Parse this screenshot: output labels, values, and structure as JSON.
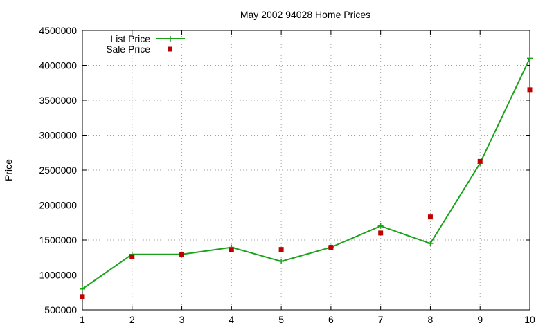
{
  "chart_data": {
    "type": "line",
    "title": "May 2002 94028 Home Prices",
    "xlabel": "",
    "ylabel": "Price",
    "x": [
      1,
      2,
      3,
      4,
      5,
      6,
      7,
      8,
      9,
      10
    ],
    "xlim": [
      1,
      10
    ],
    "ylim": [
      500000,
      4500000
    ],
    "yticks": [
      500000,
      1000000,
      1500000,
      2000000,
      2500000,
      3000000,
      3500000,
      4000000,
      4500000
    ],
    "xticks": [
      1,
      2,
      3,
      4,
      5,
      6,
      7,
      8,
      9,
      10
    ],
    "grid": true,
    "legend_position": "top-left",
    "series": [
      {
        "name": "List Price",
        "style": "line-with-plus-markers",
        "color": "#1aa31a",
        "values": [
          800000,
          1295000,
          1295000,
          1395000,
          1195000,
          1395000,
          1700000,
          1450000,
          2600000,
          4100000
        ]
      },
      {
        "name": "Sale Price",
        "style": "square-markers",
        "color": "#c00000",
        "values": [
          690000,
          1260000,
          1295000,
          1360000,
          1365000,
          1395000,
          1600000,
          1830000,
          2625000,
          3650000
        ]
      }
    ]
  }
}
